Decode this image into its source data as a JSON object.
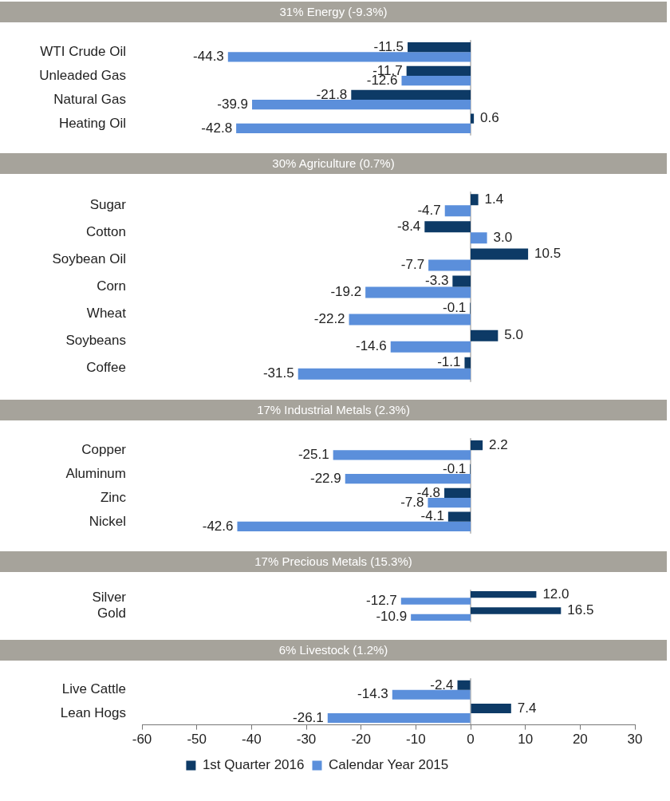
{
  "chart_data": [
    {
      "type": "bar",
      "orientation": "horizontal",
      "title": "31% Energy (-9.3%)",
      "categories": [
        "WTI Crude Oil",
        "Unleaded Gas",
        "Natural Gas",
        "Heating Oil"
      ],
      "xlim": [
        -60,
        30
      ],
      "xticks": [
        -60,
        -50,
        -40,
        -30,
        -20,
        -10,
        0,
        10,
        20,
        30
      ],
      "tick_labels": "y",
      "series": [
        {
          "color": "#0d3a66",
          "values": [
            -11.5,
            -11.7,
            -21.8,
            0.6
          ],
          "value_labels": [
            "-11.5",
            "-11.7",
            "-21.8",
            "0.6"
          ]
        },
        {
          "color": "#5b8fdb",
          "values": [
            -44.3,
            -12.6,
            -39.9,
            -42.8
          ],
          "value_labels": [
            "-44.3",
            "-12.6",
            "-39.9",
            "-42.8"
          ]
        }
      ]
    },
    {
      "type": "bar",
      "orientation": "horizontal",
      "title": "30% Agriculture (0.7%)",
      "categories": [
        "Sugar",
        "Cotton",
        "Soybean Oil",
        "Corn",
        "Wheat",
        "Soybeans",
        "Coffee"
      ],
      "xlim": [
        -60,
        30
      ],
      "xticks": [
        -60,
        -50,
        -40,
        -30,
        -20,
        -10,
        0,
        10,
        20,
        30
      ],
      "tick_labels": "y",
      "series": [
        {
          "color": "#0d3a66",
          "values": [
            1.4,
            -8.4,
            10.5,
            -3.3,
            -0.1,
            5.0,
            -1.1
          ],
          "value_labels": [
            "1.4",
            "-8.4",
            "10.5",
            "-3.3",
            "-0.1",
            "5.0",
            "-1.1"
          ]
        },
        {
          "color": "#5b8fdb",
          "values": [
            -4.7,
            3.0,
            -7.7,
            -19.2,
            -22.2,
            -14.6,
            -31.5
          ],
          "value_labels": [
            "-4.7",
            "3.0",
            "-7.7",
            "-19.2",
            "-22.2",
            "-14.6",
            "-31.5"
          ]
        }
      ]
    },
    {
      "type": "bar",
      "orientation": "horizontal",
      "title": "17% Industrial Metals (2.3%)",
      "categories": [
        "Copper",
        "Aluminum",
        "Zinc",
        "Nickel"
      ],
      "xlim": [
        -60,
        30
      ],
      "xticks": [
        -60,
        -50,
        -40,
        -30,
        -20,
        -10,
        0,
        10,
        20,
        30
      ],
      "tick_labels": "y",
      "series": [
        {
          "color": "#0d3a66",
          "values": [
            2.2,
            -0.1,
            -4.8,
            -4.1
          ],
          "value_labels": [
            "2.2",
            "-0.1",
            "-4.8",
            "-4.1"
          ]
        },
        {
          "color": "#5b8fdb",
          "values": [
            -25.1,
            -22.9,
            -7.8,
            -42.6
          ],
          "value_labels": [
            "-25.1",
            "-22.9",
            "-7.8",
            "-42.6"
          ]
        }
      ]
    },
    {
      "type": "bar",
      "orientation": "horizontal",
      "title": "17% Precious Metals (15.3%)",
      "categories": [
        "Silver",
        "Gold"
      ],
      "xlim": [
        -60,
        30
      ],
      "xticks": [
        -60,
        -50,
        -40,
        -30,
        -20,
        -10,
        0,
        10,
        20,
        30
      ],
      "tick_labels": "y",
      "series": [
        {
          "color": "#0d3a66",
          "values": [
            12.0,
            16.5
          ],
          "value_labels": [
            "12.0",
            "16.5"
          ]
        },
        {
          "color": "#5b8fdb",
          "values": [
            -12.7,
            -10.9
          ],
          "value_labels": [
            "-12.7",
            "-10.9"
          ]
        }
      ]
    },
    {
      "type": "bar",
      "orientation": "horizontal",
      "title": "6% Livestock (1.2%)",
      "categories": [
        "Live Cattle",
        "Lean Hogs"
      ],
      "xlim": [
        -60,
        30
      ],
      "xticks": [
        -60,
        -50,
        -40,
        -30,
        -20,
        -10,
        0,
        10,
        20,
        30
      ],
      "legend": "bottom",
      "series": [
        {
          "name": "1st Quarter 2016",
          "color": "#0d3a66",
          "values": [
            -2.4,
            7.4
          ],
          "value_labels": [
            "-2.4",
            "7.4"
          ]
        },
        {
          "name": "Calendar Year 2015",
          "color": "#5b8fdb",
          "values": [
            -14.3,
            -26.1
          ],
          "value_labels": [
            "-14.3",
            "-26.1"
          ]
        }
      ]
    }
  ]
}
